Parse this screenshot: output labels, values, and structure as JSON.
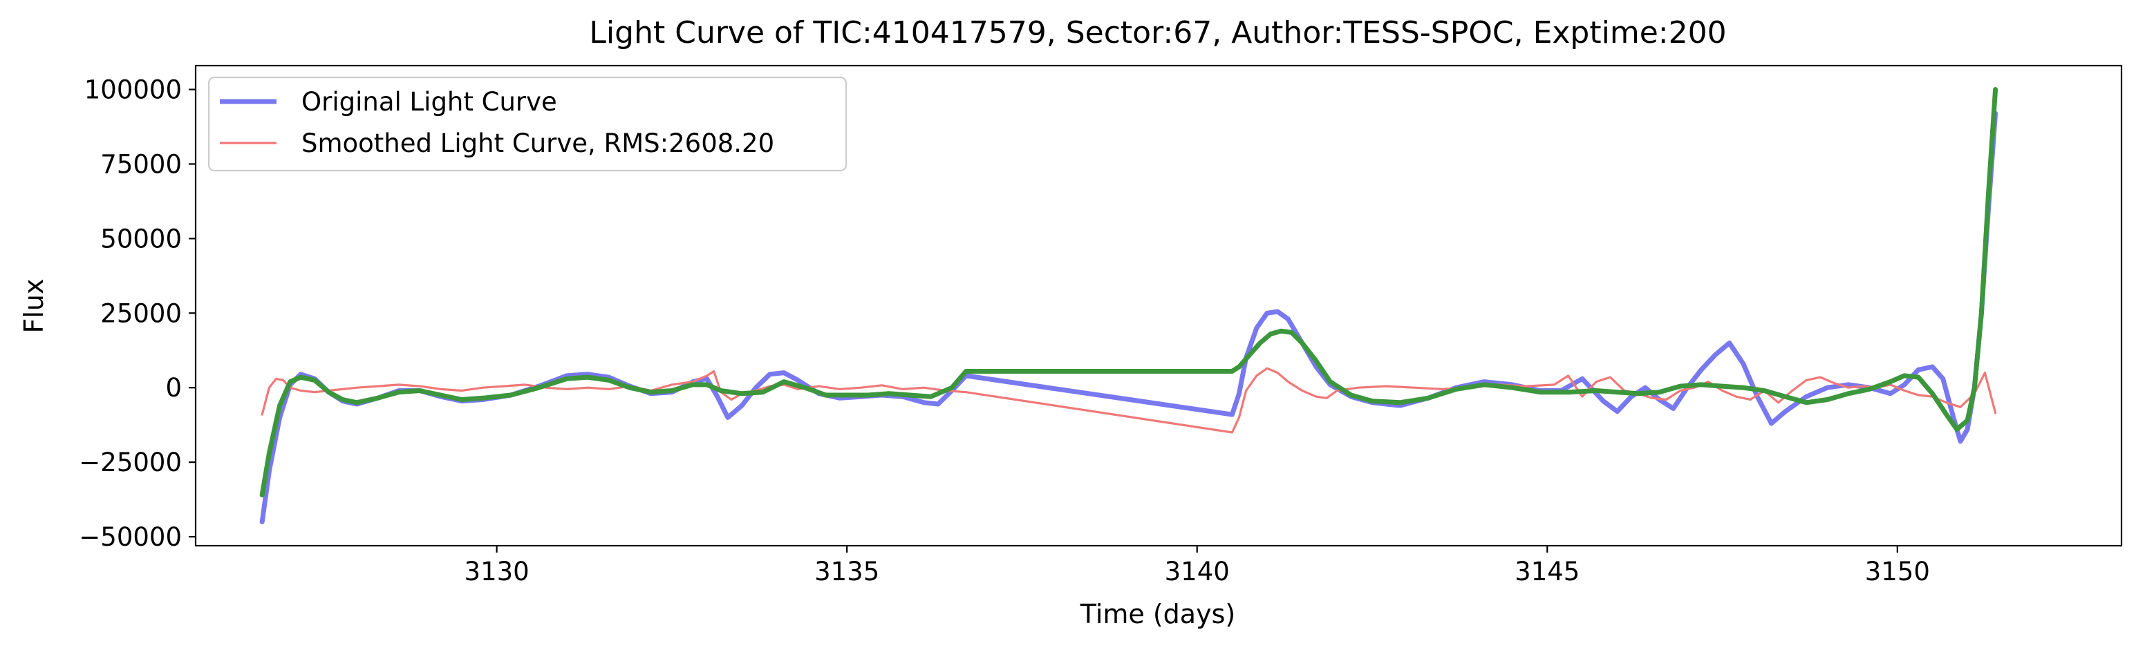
{
  "chart_data": {
    "type": "line",
    "title": "Light Curve of TIC:410417579, Sector:67, Author:TESS-SPOC, Exptime:200",
    "xlabel": "Time (days)",
    "ylabel": "Flux",
    "xlim": [
      3125.7,
      3153.2
    ],
    "ylim": [
      -53000,
      108000
    ],
    "xticks": [
      3130,
      3135,
      3140,
      3145,
      3150
    ],
    "xtick_labels": [
      "3130",
      "3135",
      "3140",
      "3145",
      "3150"
    ],
    "yticks": [
      -50000,
      -25000,
      0,
      25000,
      50000,
      75000,
      100000
    ],
    "ytick_labels": [
      "−50000",
      "−25000",
      "0",
      "25000",
      "50000",
      "75000",
      "100000"
    ],
    "grid": false,
    "legend_position": "top-left",
    "legend": [
      {
        "label": "Original Light Curve",
        "series": 0
      },
      {
        "label": "Smoothed Light Curve, RMS:2608.20",
        "series": 1
      }
    ],
    "series": [
      {
        "name": "Original Light Curve",
        "color": "#7878f0",
        "width": 7,
        "x": [
          3126.65,
          3126.75,
          3126.9,
          3127.05,
          3127.2,
          3127.4,
          3127.6,
          3127.8,
          3128.0,
          3128.3,
          3128.6,
          3128.9,
          3129.2,
          3129.5,
          3129.8,
          3130.2,
          3130.6,
          3131.0,
          3131.3,
          3131.6,
          3131.9,
          3132.2,
          3132.5,
          3132.8,
          3133.0,
          3133.15,
          3133.3,
          3133.5,
          3133.7,
          3133.9,
          3134.1,
          3134.3,
          3134.6,
          3134.9,
          3135.2,
          3135.5,
          3135.8,
          3136.1,
          3136.3,
          3136.5,
          3136.7,
          3140.5,
          3140.6,
          3140.7,
          3140.85,
          3141.0,
          3141.15,
          3141.3,
          3141.5,
          3141.7,
          3141.9,
          3142.2,
          3142.5,
          3142.9,
          3143.3,
          3143.7,
          3144.1,
          3144.5,
          3144.9,
          3145.2,
          3145.5,
          3145.8,
          3146.0,
          3146.2,
          3146.4,
          3146.6,
          3146.8,
          3147.0,
          3147.2,
          3147.4,
          3147.6,
          3147.8,
          3148.0,
          3148.2,
          3148.4,
          3148.7,
          3149.0,
          3149.3,
          3149.6,
          3149.9,
          3150.1,
          3150.3,
          3150.5,
          3150.65,
          3150.8,
          3150.9,
          3151.0,
          3151.1,
          3151.2,
          3151.3,
          3151.4
        ],
        "y": [
          -45000,
          -28000,
          -10000,
          1000,
          4500,
          3000,
          -1500,
          -4500,
          -5500,
          -3500,
          -1000,
          -1000,
          -3000,
          -4500,
          -4000,
          -2500,
          500,
          4000,
          4500,
          3500,
          500,
          -2000,
          -1500,
          2000,
          3000,
          -3000,
          -10000,
          -6000,
          0,
          4500,
          5000,
          2500,
          -2000,
          -3500,
          -3000,
          -2500,
          -3000,
          -5000,
          -5500,
          -1000,
          4000,
          -9000,
          -2000,
          10000,
          20000,
          25000,
          25500,
          23000,
          15000,
          7000,
          1000,
          -3000,
          -5000,
          -6000,
          -3500,
          0,
          2000,
          1000,
          -1000,
          -1000,
          3000,
          -4500,
          -8000,
          -3000,
          0,
          -4000,
          -7000,
          0,
          6000,
          11000,
          15000,
          8000,
          -3000,
          -12000,
          -8000,
          -3000,
          0,
          1000,
          0,
          -2000,
          1000,
          6000,
          7000,
          3000,
          -10000,
          -18000,
          -14000,
          0,
          25000,
          60000,
          92000
        ]
      },
      {
        "name": "Smoothed Light Curve, RMS:2608.20",
        "color": "#f07878",
        "width": 3.2,
        "x": [
          3126.65,
          3126.75,
          3126.85,
          3126.95,
          3127.05,
          3127.2,
          3127.4,
          3127.6,
          3127.8,
          3128.0,
          3128.3,
          3128.6,
          3128.9,
          3129.2,
          3129.5,
          3129.8,
          3130.1,
          3130.4,
          3130.7,
          3131.0,
          3131.3,
          3131.6,
          3131.9,
          3132.2,
          3132.5,
          3132.8,
          3133.0,
          3133.1,
          3133.2,
          3133.35,
          3133.5,
          3133.7,
          3133.9,
          3134.1,
          3134.3,
          3134.6,
          3134.9,
          3135.2,
          3135.5,
          3135.8,
          3136.1,
          3136.4,
          3136.7,
          3140.5,
          3140.6,
          3140.7,
          3140.85,
          3141.0,
          3141.15,
          3141.3,
          3141.5,
          3141.7,
          3141.85,
          3142.0,
          3142.3,
          3142.7,
          3143.1,
          3143.5,
          3143.9,
          3144.3,
          3144.7,
          3145.1,
          3145.3,
          3145.5,
          3145.7,
          3145.9,
          3146.1,
          3146.3,
          3146.5,
          3146.7,
          3146.9,
          3147.1,
          3147.3,
          3147.5,
          3147.7,
          3147.9,
          3148.1,
          3148.3,
          3148.5,
          3148.7,
          3148.9,
          3149.1,
          3149.3,
          3149.5,
          3149.7,
          3149.9,
          3150.1,
          3150.3,
          3150.5,
          3150.7,
          3150.9,
          3151.1,
          3151.25,
          3151.4
        ],
        "y": [
          -9000,
          0,
          3000,
          2500,
          0,
          -1000,
          -1500,
          -1000,
          -500,
          0,
          500,
          1000,
          500,
          -500,
          -1000,
          0,
          500,
          1000,
          0,
          -500,
          0,
          -500,
          500,
          -1000,
          1000,
          2000,
          4000,
          5500,
          -1500,
          -4000,
          -2000,
          -1000,
          500,
          1000,
          -500,
          500,
          -500,
          0,
          800,
          -500,
          0,
          -1000,
          -1500,
          -15000,
          -10000,
          -1000,
          4000,
          6500,
          5000,
          2000,
          -1000,
          -3000,
          -3500,
          -1000,
          0,
          500,
          0,
          -500,
          0,
          1000,
          500,
          1000,
          4000,
          -3000,
          2000,
          3500,
          -1000,
          -2000,
          -3500,
          -4000,
          -1000,
          0,
          2000,
          -1000,
          -3000,
          -4000,
          -1000,
          -5000,
          -1000,
          2500,
          3500,
          1500,
          0,
          500,
          0,
          1000,
          -1000,
          -2500,
          -3000,
          -5000,
          -6500,
          -2000,
          5000,
          -8500
        ]
      },
      {
        "name": "",
        "color": "#3c963c",
        "width": 7,
        "x": [
          3126.65,
          3126.75,
          3126.9,
          3127.05,
          3127.2,
          3127.4,
          3127.6,
          3127.8,
          3128.0,
          3128.3,
          3128.6,
          3128.9,
          3129.2,
          3129.5,
          3129.8,
          3130.2,
          3130.6,
          3131.0,
          3131.3,
          3131.6,
          3131.9,
          3132.2,
          3132.5,
          3132.8,
          3133.0,
          3133.2,
          3133.5,
          3133.8,
          3134.1,
          3134.4,
          3134.7,
          3135.0,
          3135.3,
          3135.6,
          3135.9,
          3136.2,
          3136.5,
          3136.7,
          3140.5,
          3140.6,
          3140.75,
          3140.9,
          3141.05,
          3141.2,
          3141.35,
          3141.5,
          3141.7,
          3141.9,
          3142.2,
          3142.5,
          3142.9,
          3143.3,
          3143.7,
          3144.1,
          3144.5,
          3144.9,
          3145.3,
          3145.7,
          3146.0,
          3146.3,
          3146.6,
          3146.9,
          3147.2,
          3147.5,
          3147.8,
          3148.1,
          3148.4,
          3148.7,
          3149.0,
          3149.3,
          3149.6,
          3149.9,
          3150.1,
          3150.3,
          3150.5,
          3150.7,
          3150.85,
          3151.0,
          3151.1,
          3151.2,
          3151.3,
          3151.4
        ],
        "y": [
          -36000,
          -22000,
          -6000,
          2000,
          3500,
          2500,
          -1500,
          -4000,
          -5000,
          -3500,
          -1500,
          -1000,
          -2500,
          -4000,
          -3500,
          -2500,
          0,
          3000,
          3500,
          2500,
          0,
          -1500,
          -1000,
          1000,
          1000,
          -1000,
          -2000,
          -1500,
          2000,
          0,
          -2500,
          -2500,
          -2500,
          -2000,
          -2500,
          -3000,
          0,
          5500,
          5500,
          7000,
          11000,
          15000,
          18000,
          19000,
          18500,
          15000,
          9000,
          2000,
          -2500,
          -4500,
          -5000,
          -3500,
          -500,
          1000,
          0,
          -1500,
          -1500,
          -1000,
          -1500,
          -2000,
          -1500,
          500,
          1000,
          500,
          0,
          -1000,
          -3000,
          -5000,
          -4000,
          -2000,
          -500,
          2000,
          4000,
          3500,
          -2000,
          -9000,
          -14000,
          -11000,
          0,
          25000,
          65000,
          100000
        ]
      }
    ]
  }
}
